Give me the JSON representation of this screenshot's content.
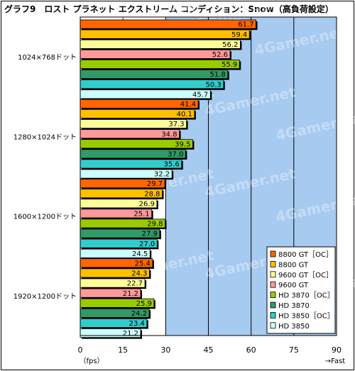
{
  "chart_data": {
    "type": "bar",
    "title": "グラフ9　ロスト プラネット エクストリーム コンディション：Snow（高負荷設定）",
    "xlabel": "（fps）",
    "fast_label": "→Fast",
    "xlim": [
      0,
      90
    ],
    "xticks": [
      0,
      15,
      30,
      45,
      60,
      75,
      90
    ],
    "grid": "vertical",
    "legend_position": "bottom-right",
    "watermark": "4Gamer.net",
    "categories": [
      "1024×768ドット",
      "1280×1024ドット",
      "1600×1200ドット",
      "1920×1200ドット"
    ],
    "series": [
      {
        "name": "8800 GT［OC］",
        "color": "#ff6600",
        "values": [
          61.7,
          41.4,
          29.7,
          25.4
        ]
      },
      {
        "name": "8800 GT",
        "color": "#ffc000",
        "values": [
          59.4,
          40.1,
          28.8,
          24.3
        ]
      },
      {
        "name": "9600 GT［OC］",
        "color": "#ffff99",
        "values": [
          56.2,
          37.3,
          26.9,
          22.7
        ]
      },
      {
        "name": "9600 GT",
        "color": "#ff9999",
        "values": [
          52.6,
          34.8,
          25.1,
          21.2
        ]
      },
      {
        "name": "HD 3870［OC］",
        "color": "#99cc00",
        "values": [
          55.9,
          39.5,
          29.8,
          25.9
        ]
      },
      {
        "name": "HD 3870",
        "color": "#339966",
        "values": [
          51.8,
          37.0,
          27.9,
          24.2
        ]
      },
      {
        "name": "HD 3850［OC］",
        "color": "#33cccc",
        "values": [
          50.3,
          35.6,
          27.0,
          23.4
        ]
      },
      {
        "name": "HD 3850",
        "color": "#ccffff",
        "values": [
          45.7,
          32.2,
          24.5,
          21.2
        ]
      }
    ]
  }
}
